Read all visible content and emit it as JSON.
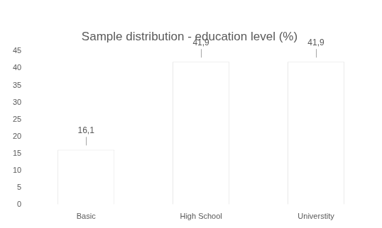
{
  "chart_data": {
    "type": "bar",
    "title": "Sample distribution - education level (%)",
    "categories": [
      "Basic",
      "High School",
      "Universtity"
    ],
    "values": [
      16.1,
      41.9,
      41.9
    ],
    "value_labels": [
      "16,1",
      "41,9",
      "41,9"
    ],
    "data_labels": true,
    "color": "#ffffff",
    "ylim": [
      0,
      45
    ],
    "yticks": [
      0,
      5,
      10,
      15,
      20,
      25,
      30,
      35,
      40,
      45
    ],
    "grid": false
  }
}
